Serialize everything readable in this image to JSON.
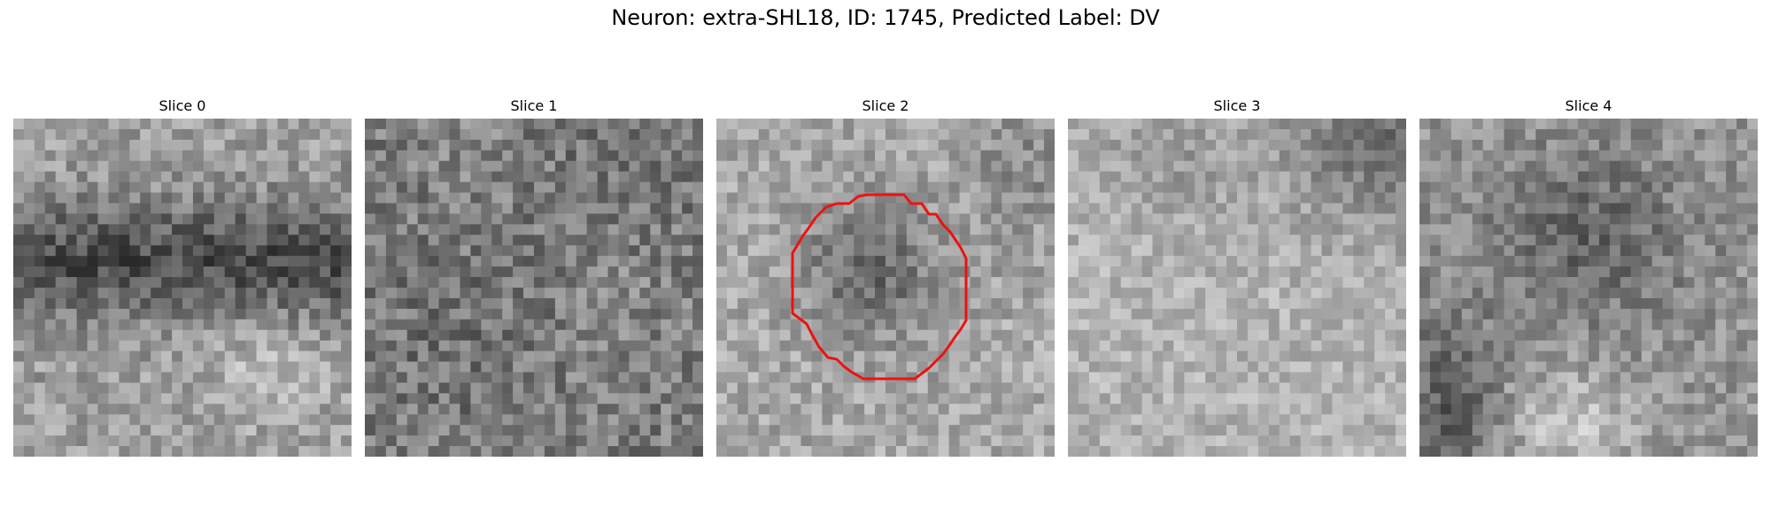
{
  "figure": {
    "title": "Neuron: extra-SHL18, ID: 1745, Predicted Label: DV"
  },
  "slices": [
    {
      "label": "Slice 0",
      "has_roi": false
    },
    {
      "label": "Slice 1",
      "has_roi": false
    },
    {
      "label": "Slice 2",
      "has_roi": true
    },
    {
      "label": "Slice 3",
      "has_roi": false
    },
    {
      "label": "Slice 4",
      "has_roi": false
    }
  ],
  "colors": {
    "roi_outline": "#ee1111",
    "background": "#ffffff"
  },
  "image_style": {
    "colormap": "grayscale",
    "grid_cells": 32
  }
}
